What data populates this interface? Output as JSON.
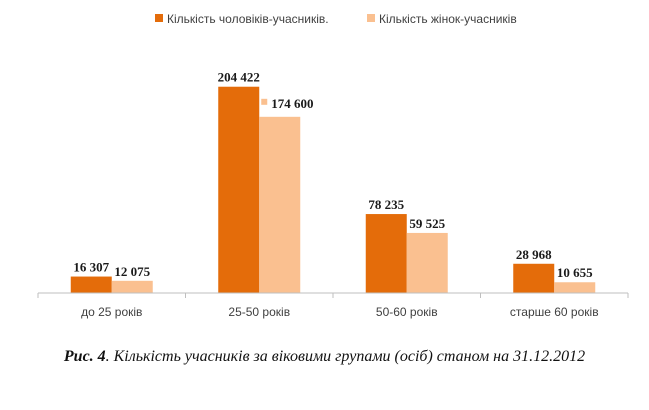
{
  "chart_data": {
    "type": "bar",
    "categories": [
      "до 25 років",
      "25-50 років",
      "50-60 років",
      "старше 60 років"
    ],
    "series": [
      {
        "name": "Кількість чоловіків-учасників.",
        "values": [
          16307,
          204422,
          78235,
          28968
        ],
        "color": "#e46c0a",
        "labels": [
          "16 307",
          "204 422",
          "78 235",
          "28 968"
        ]
      },
      {
        "name": "Кількість жінок-учасників",
        "values": [
          12075,
          174600,
          59525,
          10655
        ],
        "color": "#fac090",
        "labels": [
          "12 075",
          "174 600",
          "59 525",
          "10 655"
        ]
      }
    ],
    "ylim": [
      0,
      220000
    ],
    "grid": false,
    "legend_position": "top"
  },
  "caption": {
    "number": "Рис. 4",
    "text": ". Кількість учасників за віковими групами (осіб) станом на 31.12.2012"
  }
}
